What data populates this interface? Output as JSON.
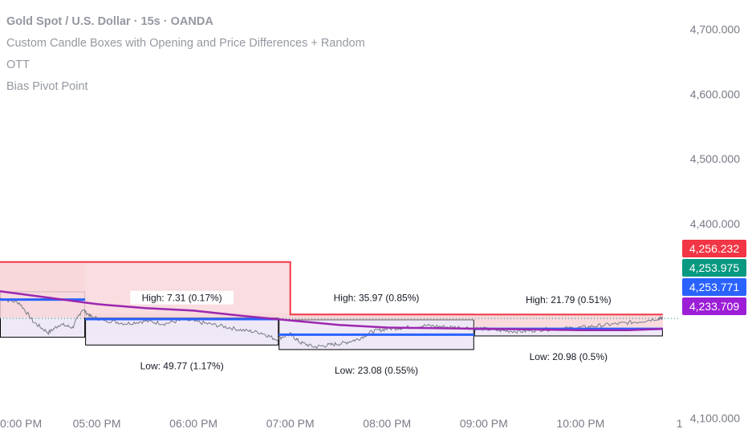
{
  "legend": {
    "title": "Gold Spot / U.S. Dollar · 15s · OANDA",
    "indicator1": "Custom Candle Boxes with Opening and Price Differences + Random",
    "indicator2": "OTT",
    "indicator3": "Bias Pivot Point"
  },
  "colors": {
    "box_fill": "#f8d7da",
    "box_fill_light": "#ede7f6",
    "box_border": "#000000",
    "red_line": "#f23645",
    "ott_line": "#9c27b0",
    "pivot_line": "#2962ff",
    "price_line": "#787b86",
    "tag_red": "#f23645",
    "tag_green": "#089981",
    "tag_blue": "#2962ff",
    "tag_purple": "#9c1ed6"
  },
  "chart_data": {
    "type": "line",
    "y_ticks": [
      "4,700.000",
      "4,600.000",
      "4,500.000",
      "4,400.000",
      "4,100.000"
    ],
    "y_tick_values": [
      4700,
      4600,
      4500,
      4400,
      4100
    ],
    "x_ticks": [
      "0:00 PM",
      "05:00 PM",
      "06:00 PM",
      "07:00 PM",
      "08:00 PM",
      "09:00 PM",
      "10:00 PM",
      "1"
    ],
    "x_tick_hours": [
      16.05,
      17,
      18,
      19,
      20,
      21,
      22,
      22.99
    ],
    "ylim": [
      4065,
      4745
    ],
    "xlim": [
      16.0,
      23.05
    ],
    "price_tags": [
      {
        "label": "4,256.232",
        "value": 4256.232,
        "color": "#f23645"
      },
      {
        "label": "4,253.975",
        "value": 4253.975,
        "color": "#089981"
      },
      {
        "label": "4,253.771",
        "value": 4253.771,
        "color": "#2962ff"
      },
      {
        "label": "4,233.709",
        "value": 4233.709,
        "color": "#9c1ed6"
      }
    ],
    "red_line": [
      [
        16.0,
        4341
      ],
      [
        19.0,
        4341
      ],
      [
        19.0,
        4260
      ],
      [
        22.85,
        4260
      ]
    ],
    "boxes": [
      {
        "start": 16.0,
        "end": 16.88,
        "open": 4295,
        "high": 4341,
        "low": 4225
      },
      {
        "start": 16.88,
        "end": 18.88,
        "open": 4255,
        "high": 4262,
        "low": 4213,
        "high_label": "High: 7.31 (0.17%)",
        "low_label": "Low: 49.77 (1.17%)"
      },
      {
        "start": 18.88,
        "end": 20.9,
        "open": 4252,
        "high": 4262,
        "low": 4206,
        "high_label": "High: 35.97 (0.85%)",
        "low_label": "Low: 23.08 (0.55%)"
      },
      {
        "start": 20.9,
        "end": 22.85,
        "open": 4238,
        "high": 4259,
        "low": 4227,
        "high_label": "High: 21.79 (0.51%)",
        "low_label": "Low: 20.98 (0.5%)"
      }
    ],
    "pivot_segments": [
      {
        "start": 16.0,
        "end": 16.88,
        "value": 4283
      },
      {
        "start": 16.88,
        "end": 18.88,
        "value": 4253
      },
      {
        "start": 18.88,
        "end": 20.9,
        "value": 4229
      },
      {
        "start": 20.9,
        "end": 22.85,
        "value": 4238
      }
    ],
    "ott": [
      [
        16.0,
        4296
      ],
      [
        16.5,
        4286
      ],
      [
        17.0,
        4276
      ],
      [
        17.5,
        4270
      ],
      [
        18.0,
        4266
      ],
      [
        18.5,
        4258
      ],
      [
        19.0,
        4251
      ],
      [
        19.5,
        4244
      ],
      [
        20.0,
        4240
      ],
      [
        20.5,
        4239
      ],
      [
        21.0,
        4238
      ],
      [
        21.5,
        4237
      ],
      [
        22.0,
        4236
      ],
      [
        22.5,
        4236
      ],
      [
        22.85,
        4238
      ]
    ],
    "price": [
      [
        16.0,
        4285
      ],
      [
        16.2,
        4278
      ],
      [
        16.35,
        4248
      ],
      [
        16.5,
        4232
      ],
      [
        16.62,
        4245
      ],
      [
        16.75,
        4240
      ],
      [
        16.85,
        4268
      ],
      [
        16.95,
        4256
      ],
      [
        17.1,
        4251
      ],
      [
        17.3,
        4246
      ],
      [
        17.5,
        4250
      ],
      [
        17.7,
        4246
      ],
      [
        17.9,
        4252
      ],
      [
        18.1,
        4247
      ],
      [
        18.3,
        4242
      ],
      [
        18.5,
        4236
      ],
      [
        18.7,
        4232
      ],
      [
        18.85,
        4222
      ],
      [
        19.0,
        4230
      ],
      [
        19.1,
        4217
      ],
      [
        19.25,
        4210
      ],
      [
        19.4,
        4213
      ],
      [
        19.55,
        4216
      ],
      [
        19.7,
        4222
      ],
      [
        19.85,
        4234
      ],
      [
        20.0,
        4238
      ],
      [
        20.2,
        4240
      ],
      [
        20.4,
        4243
      ],
      [
        20.6,
        4241
      ],
      [
        20.8,
        4240
      ],
      [
        21.0,
        4238
      ],
      [
        21.2,
        4235
      ],
      [
        21.4,
        4234
      ],
      [
        21.6,
        4237
      ],
      [
        21.8,
        4238
      ],
      [
        22.0,
        4240
      ],
      [
        22.2,
        4243
      ],
      [
        22.4,
        4246
      ],
      [
        22.6,
        4249
      ],
      [
        22.8,
        4254
      ],
      [
        22.85,
        4254
      ]
    ]
  }
}
